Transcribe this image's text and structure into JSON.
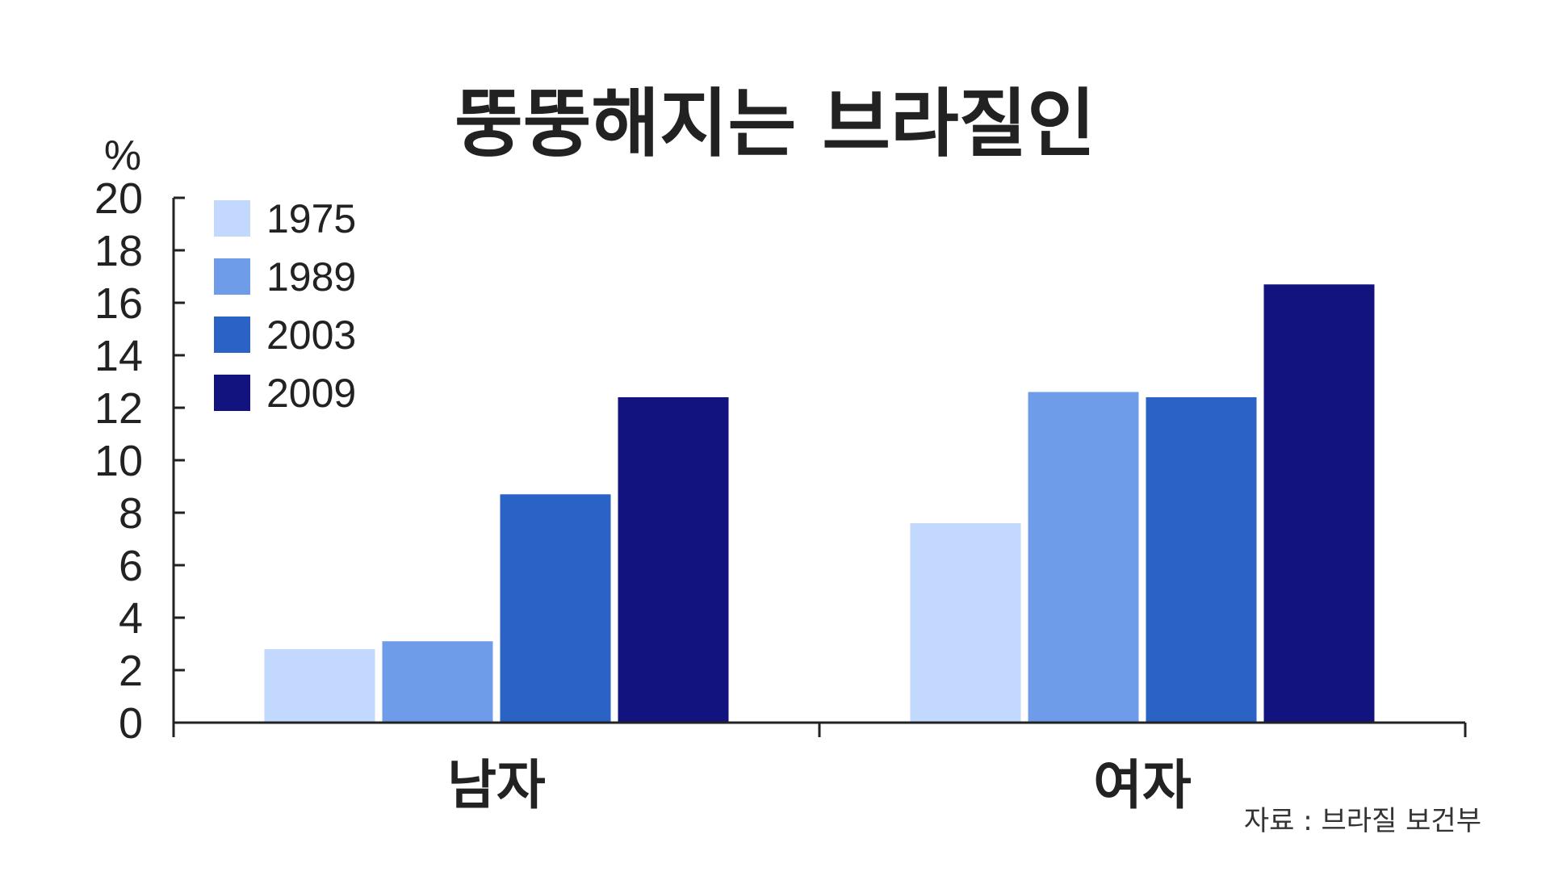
{
  "chart_data": {
    "type": "bar",
    "title": "뚱뚱해지는 브라질인",
    "ylabel": "%",
    "ylim": [
      0,
      20
    ],
    "yticks": [
      0,
      2,
      4,
      6,
      8,
      10,
      12,
      14,
      16,
      18,
      20
    ],
    "categories": [
      "남자",
      "여자"
    ],
    "series": [
      {
        "name": "1975",
        "color": "#c2d8fc",
        "values": [
          2.8,
          7.6
        ]
      },
      {
        "name": "1989",
        "color": "#6f9ce9",
        "values": [
          3.1,
          12.6
        ]
      },
      {
        "name": "2003",
        "color": "#2a62c5",
        "values": [
          8.7,
          12.4
        ]
      },
      {
        "name": "2009",
        "color": "#12137e",
        "values": [
          12.4,
          16.7
        ]
      }
    ],
    "legend_position": "top-left",
    "grid": false
  },
  "source": "자료 : 브라질 보건부"
}
